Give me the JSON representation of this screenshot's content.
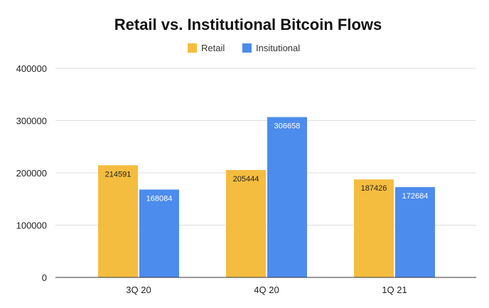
{
  "chart_data": {
    "type": "bar",
    "title": "Retail vs. Institutional Bitcoin Flows",
    "xlabel": "",
    "ylabel": "",
    "categories": [
      "3Q 20",
      "4Q 20",
      "1Q 21"
    ],
    "series": [
      {
        "name": "Retail",
        "color": "#f4bd3f",
        "label_color": "#222222",
        "values": [
          214591,
          205444,
          187426
        ]
      },
      {
        "name": "Insitutional",
        "color": "#4c8cec",
        "label_color": "#ffffff",
        "values": [
          168084,
          306658,
          172684
        ]
      }
    ],
    "ylim": [
      0,
      400000
    ],
    "yticks": [
      "0",
      "100000",
      "200000",
      "300000",
      "400000"
    ],
    "ytick_values": [
      0,
      100000,
      200000,
      300000,
      400000
    ],
    "grid": true,
    "legend_position": "top-center"
  }
}
